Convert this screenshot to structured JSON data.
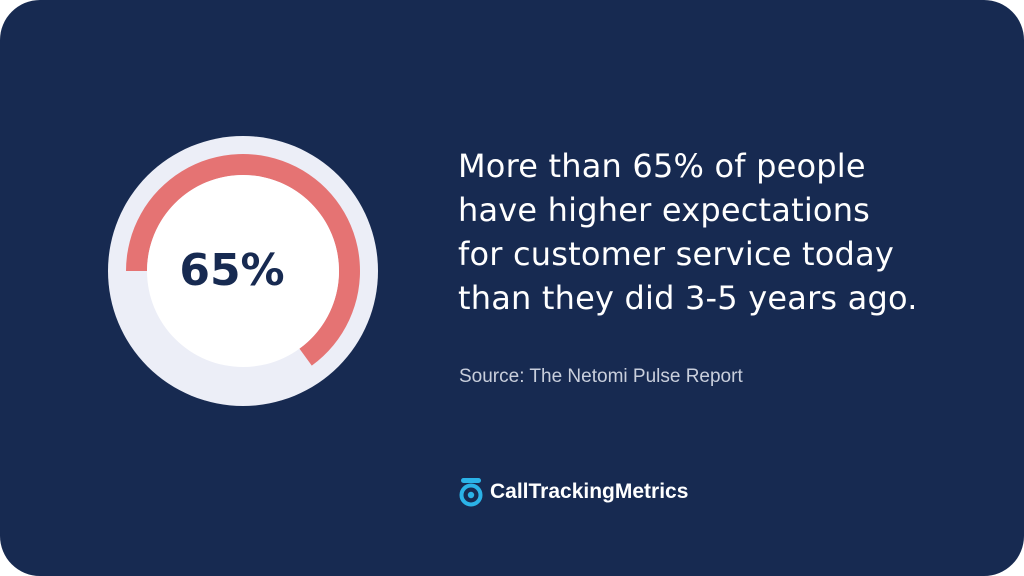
{
  "chart_data": {
    "type": "pie",
    "values": [
      65,
      35
    ],
    "center_label": "65%",
    "percent": 65
  },
  "headline": {
    "lines": [
      "More than 65% of people",
      "have higher expectations",
      "for customer service today",
      "than they did 3-5 years ago."
    ]
  },
  "source": "Source: The Netomi Pulse Report",
  "brand": {
    "name": "CallTrackingMetrics",
    "icon": "call-tracking-logo-icon"
  },
  "colors": {
    "background": "#172a51",
    "highlight": "#e57373",
    "track": "#eceef7",
    "center": "#ffffff",
    "logo": "#2bb3e8"
  }
}
